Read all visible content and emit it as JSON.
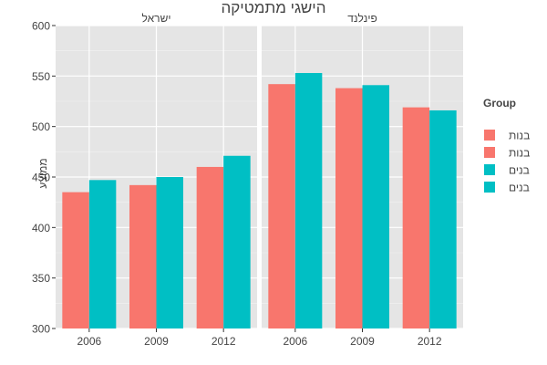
{
  "chart_data": {
    "type": "bar",
    "title": "הישגי מתמטיקה",
    "ylabel": "ממוצע",
    "xlabel": "",
    "ylim": [
      300,
      600
    ],
    "yticks": [
      300,
      350,
      400,
      450,
      500,
      550,
      600
    ],
    "grid": true,
    "legend_position": "right",
    "categories": [
      "2006",
      "2009",
      "2012"
    ],
    "legend": {
      "title": "Group",
      "entries": [
        {
          "label": "בנות",
          "color": "#F8766D"
        },
        {
          "label": "בנות",
          "color": "#F8766D"
        },
        {
          "label": "בנים",
          "color": "#00BFC4"
        },
        {
          "label": "בנים",
          "color": "#00BFC4"
        }
      ]
    },
    "panels": [
      {
        "name": "ישראל",
        "series": [
          {
            "name": "בנות",
            "color": "#F8766D",
            "values": [
              435,
              442,
              460
            ]
          },
          {
            "name": "בנים",
            "color": "#00BFC4",
            "values": [
              447,
              450,
              471
            ]
          }
        ]
      },
      {
        "name": "פינלנד",
        "series": [
          {
            "name": "בנות",
            "color": "#F8766D",
            "values": [
              542,
              538,
              519
            ]
          },
          {
            "name": "בנים",
            "color": "#00BFC4",
            "values": [
              553,
              541,
              516
            ]
          }
        ]
      }
    ]
  }
}
